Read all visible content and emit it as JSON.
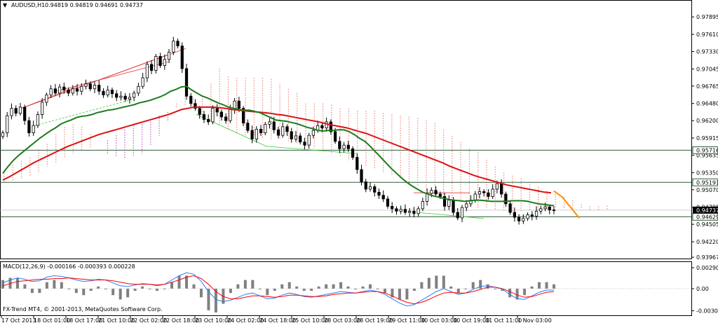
{
  "header": {
    "dropdown_glyph": "▼",
    "symbol": "AUDUSD,H1",
    "ohlc": "0.94819 0.94819 0.94691 0.94737"
  },
  "macd_label": "MACD(12,26,9) -0.000166 -0.000393 0.000228",
  "copyright": "FX-Trend MT4, © 2001-2013, MetaQuotes Software Corp.",
  "colors": {
    "background": "#ffffff",
    "frame": "#000000",
    "bull_candle": "#ffffff",
    "bear_candle": "#000000",
    "ma_fast": "#1e7a1e",
    "ma_slow": "#dd1111",
    "ichimoku_cloud": "#cc55cc",
    "cloud_red": "#ee8877",
    "forecast": "#ff8c00",
    "support_line": "#33cc33",
    "macd_line": "#2a7fff",
    "signal_line": "#ff0000",
    "histogram": "#808080",
    "current_price_bg": "#000000",
    "current_price_text": "#ffffff"
  },
  "chart_data": [
    {
      "type": "candlestick",
      "symbol": "AUDUSD",
      "timeframe": "H1",
      "y_ticks": [
        "0.97895",
        "0.97610",
        "0.97330",
        "0.97045",
        "0.96765",
        "0.96480",
        "0.96200",
        "0.95915",
        "0.95635",
        "0.95350",
        "0.95070",
        "0.94785",
        "0.94505",
        "0.94220",
        "0.93967"
      ],
      "y_tick_values": [
        0.97895,
        0.9761,
        0.9733,
        0.97045,
        0.96765,
        0.9648,
        0.962,
        0.95915,
        0.95635,
        0.9535,
        0.9507,
        0.94785,
        0.94505,
        0.9422,
        0.93967
      ],
      "ylim": [
        0.9398,
        0.9808
      ],
      "x_ticks": [
        "17 Oct 2013",
        "18 Oct 01:00",
        "18 Oct 17:00",
        "21 Oct 10:00",
        "22 Oct 02:00",
        "22 Oct 18:00",
        "23 Oct 10:00",
        "24 Oct 02:00",
        "24 Oct 18:00",
        "25 Oct 10:00",
        "28 Oct 03:00",
        "28 Oct 19:00",
        "29 Oct 11:00",
        "30 Oct 03:00",
        "30 Oct 19:00",
        "31 Oct 11:00",
        "1 Nov 03:00"
      ],
      "horizontal_levels": [
        {
          "label": "0.95716",
          "value": 0.95716
        },
        {
          "label": "0.95191",
          "value": 0.95191
        },
        {
          "label": "0.94629",
          "value": 0.94629
        }
      ],
      "current_price": {
        "label": "0.94737",
        "value": 0.94737
      },
      "close_series": [
        0.96,
        0.9628,
        0.964,
        0.9632,
        0.9642,
        0.962,
        0.96,
        0.9612,
        0.963,
        0.965,
        0.9662,
        0.9672,
        0.9665,
        0.9675,
        0.967,
        0.9665,
        0.9672,
        0.9668,
        0.9676,
        0.968,
        0.9672,
        0.9678,
        0.9668,
        0.9662,
        0.967,
        0.9664,
        0.9658,
        0.966,
        0.9655,
        0.9658,
        0.9665,
        0.9676,
        0.969,
        0.9712,
        0.9702,
        0.9725,
        0.971,
        0.972,
        0.9732,
        0.975,
        0.9742,
        0.9705,
        0.966,
        0.9648,
        0.964,
        0.963,
        0.9622,
        0.9618,
        0.964,
        0.9634,
        0.9626,
        0.962,
        0.9638,
        0.9652,
        0.964,
        0.9616,
        0.9604,
        0.959,
        0.9606,
        0.96,
        0.9614,
        0.9618,
        0.9605,
        0.9596,
        0.961,
        0.9602,
        0.959,
        0.9595,
        0.9585,
        0.958,
        0.9596,
        0.9604,
        0.9612,
        0.9608,
        0.9618,
        0.9602,
        0.9586,
        0.9574,
        0.958,
        0.9574,
        0.956,
        0.954,
        0.952,
        0.9508,
        0.9512,
        0.9503,
        0.9498,
        0.9492,
        0.948,
        0.9476,
        0.9472,
        0.9475,
        0.947,
        0.9472,
        0.9468,
        0.9476,
        0.9488,
        0.9501,
        0.9506,
        0.95,
        0.9496,
        0.948,
        0.949,
        0.947,
        0.9461,
        0.9478,
        0.9484,
        0.949,
        0.95,
        0.9504,
        0.9502,
        0.9496,
        0.9508,
        0.9517,
        0.95,
        0.9484,
        0.947,
        0.9462,
        0.9456,
        0.946,
        0.9466,
        0.9464,
        0.9472,
        0.9476,
        0.9479,
        0.9474,
        0.9473
      ],
      "ma_fast": [
        0.9534,
        0.9545,
        0.9555,
        0.9563,
        0.957,
        0.9577,
        0.9584,
        0.9591,
        0.9597,
        0.9603,
        0.9608,
        0.9614,
        0.9618,
        0.9621,
        0.9625,
        0.9627,
        0.9628,
        0.963,
        0.9633,
        0.9635,
        0.9637,
        0.9638,
        0.964,
        0.9642,
        0.9644,
        0.9646,
        0.9649,
        0.9651,
        0.9653,
        0.9656,
        0.9659,
        0.9663,
        0.9668,
        0.9671,
        0.9675,
        0.9676,
        0.967,
        0.9665,
        0.966,
        0.9657,
        0.9653,
        0.9649,
        0.9646,
        0.9642,
        0.964,
        0.9638,
        0.9637,
        0.9637,
        0.9635,
        0.9633,
        0.9629,
        0.9625,
        0.9621,
        0.962,
        0.9619,
        0.9617,
        0.9615,
        0.9612,
        0.9609,
        0.9607,
        0.9604,
        0.9603,
        0.9604,
        0.9604,
        0.9605,
        0.9605,
        0.9602,
        0.9597,
        0.9591,
        0.9586,
        0.9578,
        0.9569,
        0.956,
        0.9551,
        0.9542,
        0.9534,
        0.9526,
        0.9519,
        0.9513,
        0.9508,
        0.9503,
        0.95,
        0.9497,
        0.9495,
        0.9493,
        0.9491,
        0.949,
        0.9489,
        0.9488,
        0.9489,
        0.949,
        0.949,
        0.9489,
        0.9488,
        0.9488,
        0.9488,
        0.9488,
        0.9489,
        0.9489,
        0.9489,
        0.9488,
        0.9486,
        0.9484,
        0.9483,
        0.9482,
        0.9481
      ],
      "ma_slow": [
        0.9523,
        0.9528,
        0.9534,
        0.954,
        0.9546,
        0.9552,
        0.9557,
        0.9562,
        0.9567,
        0.9572,
        0.9577,
        0.9581,
        0.9585,
        0.9589,
        0.9593,
        0.9597,
        0.96,
        0.9603,
        0.9606,
        0.9609,
        0.9612,
        0.9615,
        0.9618,
        0.9621,
        0.9624,
        0.9627,
        0.963,
        0.9634,
        0.9638,
        0.964,
        0.9642,
        0.9642,
        0.9642,
        0.9642,
        0.9641,
        0.964,
        0.9638,
        0.9637,
        0.9636,
        0.9635,
        0.9634,
        0.9633,
        0.9632,
        0.963,
        0.9629,
        0.9627,
        0.9625,
        0.9623,
        0.9621,
        0.9619,
        0.9617,
        0.9614,
        0.9612,
        0.961,
        0.9608,
        0.9605,
        0.9602,
        0.9599,
        0.9595,
        0.9591,
        0.9587,
        0.9583,
        0.9579,
        0.9575,
        0.9571,
        0.9567,
        0.9563,
        0.9559,
        0.9555,
        0.9551,
        0.9546,
        0.9542,
        0.9538,
        0.9534,
        0.953,
        0.9527,
        0.9524,
        0.9521,
        0.9518,
        0.9515,
        0.9513,
        0.9511,
        0.9509,
        0.9507,
        0.9505,
        0.9503,
        0.9502
      ],
      "ichimoku_cloud_top": [
        0.9538,
        0.9548,
        0.9554,
        0.956,
        0.9572,
        0.9582,
        0.9598,
        0.961,
        0.9614,
        0.961,
        0.9598,
        0.958,
        0.9565,
        0.956,
        0.9558,
        0.956,
        0.9565,
        0.958,
        0.9595,
        0.962,
        0.9648,
        0.966,
        0.9656,
        0.9656,
        0.968,
        0.9705,
        0.9692,
        0.969,
        0.969,
        0.969,
        0.969,
        0.9688,
        0.968,
        0.9672,
        0.9665,
        0.9648,
        0.9648,
        0.9648,
        0.9646,
        0.964,
        0.964,
        0.9636,
        0.9636,
        0.9636,
        0.9632,
        0.963,
        0.9628,
        0.9626,
        0.9624,
        0.962,
        0.9616,
        0.9605,
        0.9595,
        0.9585,
        0.9574,
        0.9568,
        0.9556,
        0.9545,
        0.9535,
        0.953,
        0.9526,
        0.952,
        0.9512,
        0.9505,
        0.95,
        0.9495,
        0.949,
        0.9483,
        0.948,
        0.948,
        0.9481
      ],
      "ichimoku_cloud_bottom": [
        0.952,
        0.9522,
        0.9525,
        0.953,
        0.9535,
        0.9545,
        0.9552,
        0.956,
        0.9565,
        0.957,
        0.9575,
        0.958,
        0.9588,
        0.9596,
        0.9605,
        0.9612,
        0.9618,
        0.9622,
        0.9628,
        0.9634,
        0.964,
        0.9645,
        0.964,
        0.963,
        0.962,
        0.9612,
        0.9605,
        0.96,
        0.9596,
        0.9594,
        0.9592,
        0.959,
        0.9588,
        0.9586,
        0.9582,
        0.9578,
        0.9575,
        0.957,
        0.9565,
        0.956,
        0.9555,
        0.955,
        0.9545,
        0.954,
        0.9535,
        0.953,
        0.9524,
        0.9518,
        0.9512,
        0.9506,
        0.95,
        0.9495,
        0.949,
        0.9485,
        0.948,
        0.9478,
        0.9476,
        0.9474,
        0.9472,
        0.9472,
        0.9472,
        0.9473,
        0.9474,
        0.9475,
        0.9476,
        0.9476,
        0.9476,
        0.9475,
        0.9474,
        0.9474,
        0.9474
      ],
      "forecast_path": [
        0.9505,
        0.9495,
        0.9461
      ]
    },
    {
      "type": "macd",
      "params": "12,26,9",
      "values": {
        "main": -0.000166,
        "signal": -0.000393,
        "histogram": 0.000228
      },
      "y_ticks": [
        "0.002903",
        "0.00",
        "-0.003066"
      ],
      "y_tick_values": [
        0.002903,
        0.0,
        -0.003066
      ],
      "ylim": [
        -0.0035,
        0.0034
      ],
      "macd_line": [
        0.0008,
        0.0012,
        0.0015,
        0.0013,
        0.001,
        0.0011,
        0.0016,
        0.0018,
        0.0017,
        0.0015,
        0.0012,
        0.001,
        0.0011,
        0.0013,
        0.0012,
        0.0008,
        0.0004,
        0.0003,
        0.0005,
        0.0007,
        0.0006,
        0.0004,
        0.0006,
        0.0012,
        0.0018,
        0.0022,
        0.002,
        0.001,
        -0.0004,
        -0.0015,
        -0.0018,
        -0.0016,
        -0.0012,
        -0.0008,
        -0.0006,
        -0.001,
        -0.0014,
        -0.0013,
        -0.0009,
        -0.0006,
        -0.0008,
        -0.0011,
        -0.0012,
        -0.001,
        -0.0008,
        -0.0006,
        -0.0004,
        -0.0005,
        -0.0006,
        -0.0004,
        -0.0002,
        -0.0004,
        -0.0008,
        -0.0014,
        -0.002,
        -0.0024,
        -0.0022,
        -0.0016,
        -0.001,
        -0.0004,
        0.0,
        -0.0004,
        -0.0008,
        -0.0006,
        -0.0001,
        0.0003,
        0.0004,
        0.0002,
        -0.0001,
        -0.0008,
        -0.0014,
        -0.0015,
        -0.001,
        -0.0005,
        -0.0002,
        -0.0002
      ],
      "signal_line": [
        0.0004,
        0.0007,
        0.001,
        0.0011,
        0.0012,
        0.0013,
        0.0013,
        0.0014,
        0.0014,
        0.0015,
        0.0014,
        0.0013,
        0.0012,
        0.0012,
        0.0012,
        0.0011,
        0.0009,
        0.0007,
        0.0006,
        0.0006,
        0.0006,
        0.0005,
        0.0006,
        0.0009,
        0.0012,
        0.0016,
        0.0018,
        0.0014,
        0.0006,
        -0.0004,
        -0.0011,
        -0.0014,
        -0.0014,
        -0.0012,
        -0.001,
        -0.001,
        -0.0011,
        -0.0012,
        -0.0011,
        -0.0009,
        -0.0009,
        -0.001,
        -0.0011,
        -0.0011,
        -0.001,
        -0.0008,
        -0.0007,
        -0.0006,
        -0.0006,
        -0.0005,
        -0.0004,
        -0.0004,
        -0.0006,
        -0.001,
        -0.0015,
        -0.0019,
        -0.0021,
        -0.0019,
        -0.0015,
        -0.001,
        -0.0006,
        -0.0005,
        -0.0006,
        -0.0006,
        -0.0004,
        -0.0001,
        0.0002,
        0.0002,
        0.0,
        -0.0004,
        -0.0009,
        -0.0012,
        -0.0011,
        -0.0008,
        -0.0005,
        -0.0004
      ]
    }
  ]
}
